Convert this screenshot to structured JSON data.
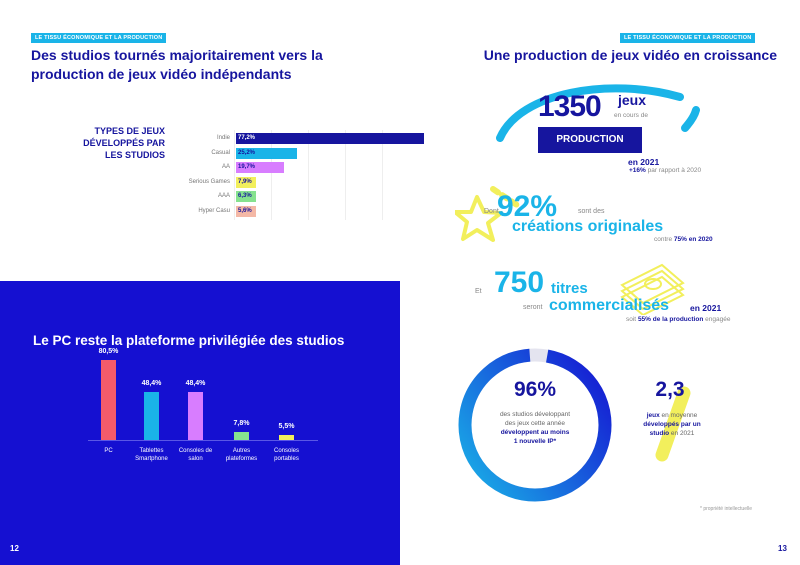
{
  "left": {
    "tag": "LE TISSU ÉCONOMIQUE ET LA PRODUCTION",
    "title_line1": "Des studios tournés majoritairement vers la",
    "title_line2": "production de jeux vidéo indépendants",
    "types_title_l1": "TYPES DE JEUX",
    "types_title_l2": "DÉVELOPPÉS PAR",
    "types_title_l3": "LES STUDIOS",
    "page_number": "12",
    "pc_title": "Le PC reste la plateforme privilégiée des studios"
  },
  "chart_data": [
    {
      "type": "bar",
      "orientation": "horizontal",
      "categories": [
        "Indie",
        "Casual",
        "AA",
        "Serious Games",
        "AAA",
        "Hyper Casu"
      ],
      "values": [
        77.2,
        25.2,
        19.7,
        7.9,
        6.3,
        5.6
      ],
      "labels": [
        "77,2%",
        "25,2%",
        "19,7%",
        "7,9%",
        "6,3%",
        "5,6%"
      ],
      "colors": [
        "#16159e",
        "#1ab4e8",
        "#d87dff",
        "#f2ef5c",
        "#86e28f",
        "#f4b8a6"
      ],
      "xlim": [
        0,
        80
      ]
    },
    {
      "type": "bar",
      "orientation": "vertical",
      "categories": [
        "PC",
        "Tablettes Smartphone",
        "Consoles de salon",
        "Autres plateformes",
        "Consoles portables"
      ],
      "category_lines": [
        [
          "PC"
        ],
        [
          "Tablettes",
          "Smartphone"
        ],
        [
          "Consoles de",
          "salon"
        ],
        [
          "Autres",
          "plateformes"
        ],
        [
          "Consoles",
          "portables"
        ]
      ],
      "values": [
        80.5,
        48.4,
        48.4,
        7.8,
        5.5
      ],
      "labels": [
        "80,5%",
        "48,4%",
        "48,4%",
        "7,8%",
        "5,5%"
      ],
      "colors": [
        "#f45b6a",
        "#1ab4e8",
        "#d87dff",
        "#86e28f",
        "#f2ef5c"
      ],
      "ylim": [
        0,
        85
      ]
    }
  ],
  "right": {
    "tag": "LE TISSU ÉCONOMIQUE ET LA PRODUCTION",
    "title": "Une production de jeux vidéo en croissance",
    "games_number": "1350",
    "games_word": "jeux",
    "games_sub": "en cours de",
    "production_label": "PRODUCTION",
    "year_label": "en 2021",
    "growth_bold": "+16%",
    "growth_rest": "par rapport à 2020",
    "dont": "Dont",
    "orig_pct": "92%",
    "orig_sub": "sont des",
    "orig_label": "créations originales",
    "orig_compare_pre": "contre",
    "orig_compare_bold": "75% en 2020",
    "et": "Et",
    "titles_number": "750",
    "titles_word": "titres",
    "titles_sub": "seront",
    "commercial_label": "commercialisés",
    "commercial_year": "en 2021",
    "commercial_soit_pre": "soit",
    "commercial_soit_bold": "55% de la production",
    "commercial_soit_post": "engagée",
    "ip_pct": "96%",
    "ip_l1": "des studios développant",
    "ip_l2": "des jeux cette année",
    "ip_l3": "développent au moins",
    "ip_l4": "1 nouvelle IP*",
    "avg_number": "2,3",
    "avg_l1_bold": "jeux",
    "avg_l1_rest": "en moyenne",
    "avg_l2": "développés par un",
    "avg_l3_bold": "studio",
    "avg_l3_rest": "en 2021",
    "footnote": "* propriété intellectuelle",
    "page_number": "13"
  }
}
